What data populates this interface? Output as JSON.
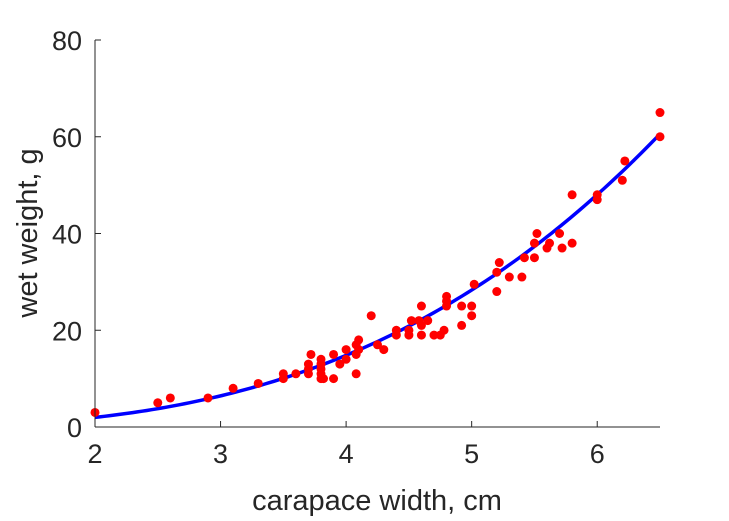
{
  "chart_data": {
    "type": "scatter",
    "xlabel": "carapace width, cm",
    "ylabel": "wet weight, g",
    "xlim": [
      2,
      6.5
    ],
    "ylim": [
      0,
      80
    ],
    "xticks": [
      2,
      3,
      4,
      5,
      6
    ],
    "yticks": [
      0,
      20,
      40,
      60,
      80
    ],
    "grid": false,
    "box": false,
    "colors": {
      "points": "#ff0000",
      "fit": "#0000ff",
      "axes": "#262626"
    },
    "fit": {
      "form": "power",
      "a": 0.266,
      "b": 2.9
    },
    "points": [
      [
        2.0,
        3.0
      ],
      [
        2.5,
        5.0
      ],
      [
        2.6,
        6.0
      ],
      [
        2.9,
        6.0
      ],
      [
        3.1,
        8.0
      ],
      [
        3.3,
        9.0
      ],
      [
        3.5,
        10.0
      ],
      [
        3.5,
        11.0
      ],
      [
        3.6,
        11.0
      ],
      [
        3.7,
        11.0
      ],
      [
        3.7,
        12.0
      ],
      [
        3.7,
        13.0
      ],
      [
        3.72,
        15.0
      ],
      [
        3.8,
        10.0
      ],
      [
        3.8,
        11.0
      ],
      [
        3.8,
        12.0
      ],
      [
        3.8,
        13.0
      ],
      [
        3.8,
        14.0
      ],
      [
        3.82,
        10.0
      ],
      [
        3.9,
        10.0
      ],
      [
        3.9,
        15.0
      ],
      [
        3.95,
        13.0
      ],
      [
        4.0,
        14.0
      ],
      [
        4.0,
        16.0
      ],
      [
        4.08,
        11.0
      ],
      [
        4.08,
        15.0
      ],
      [
        4.08,
        17.0
      ],
      [
        4.1,
        16.0
      ],
      [
        4.1,
        18.0
      ],
      [
        4.2,
        23.0
      ],
      [
        4.25,
        17.0
      ],
      [
        4.3,
        16.0
      ],
      [
        4.4,
        19.0
      ],
      [
        4.4,
        20.0
      ],
      [
        4.5,
        19.0
      ],
      [
        4.5,
        20.0
      ],
      [
        4.52,
        22.0
      ],
      [
        4.58,
        22.0
      ],
      [
        4.6,
        19.0
      ],
      [
        4.6,
        21.0
      ],
      [
        4.6,
        25.0
      ],
      [
        4.65,
        22.0
      ],
      [
        4.7,
        19.0
      ],
      [
        4.75,
        19.0
      ],
      [
        4.78,
        20.0
      ],
      [
        4.8,
        25.0
      ],
      [
        4.8,
        26.0
      ],
      [
        4.8,
        27.0
      ],
      [
        4.92,
        21.0
      ],
      [
        4.92,
        25.0
      ],
      [
        5.0,
        23.0
      ],
      [
        5.0,
        25.0
      ],
      [
        5.02,
        29.5
      ],
      [
        5.2,
        28.0
      ],
      [
        5.2,
        32.0
      ],
      [
        5.22,
        34.0
      ],
      [
        5.3,
        31.0
      ],
      [
        5.4,
        31.0
      ],
      [
        5.42,
        35.0
      ],
      [
        5.5,
        35.0
      ],
      [
        5.5,
        38.0
      ],
      [
        5.52,
        40.0
      ],
      [
        5.6,
        37.0
      ],
      [
        5.62,
        38.0
      ],
      [
        5.7,
        40.0
      ],
      [
        5.72,
        37.0
      ],
      [
        5.8,
        38.0
      ],
      [
        5.8,
        48.0
      ],
      [
        6.0,
        47.0
      ],
      [
        6.0,
        48.0
      ],
      [
        6.2,
        51.0
      ],
      [
        6.22,
        55.0
      ],
      [
        6.5,
        60.0
      ],
      [
        6.5,
        65.0
      ]
    ]
  }
}
